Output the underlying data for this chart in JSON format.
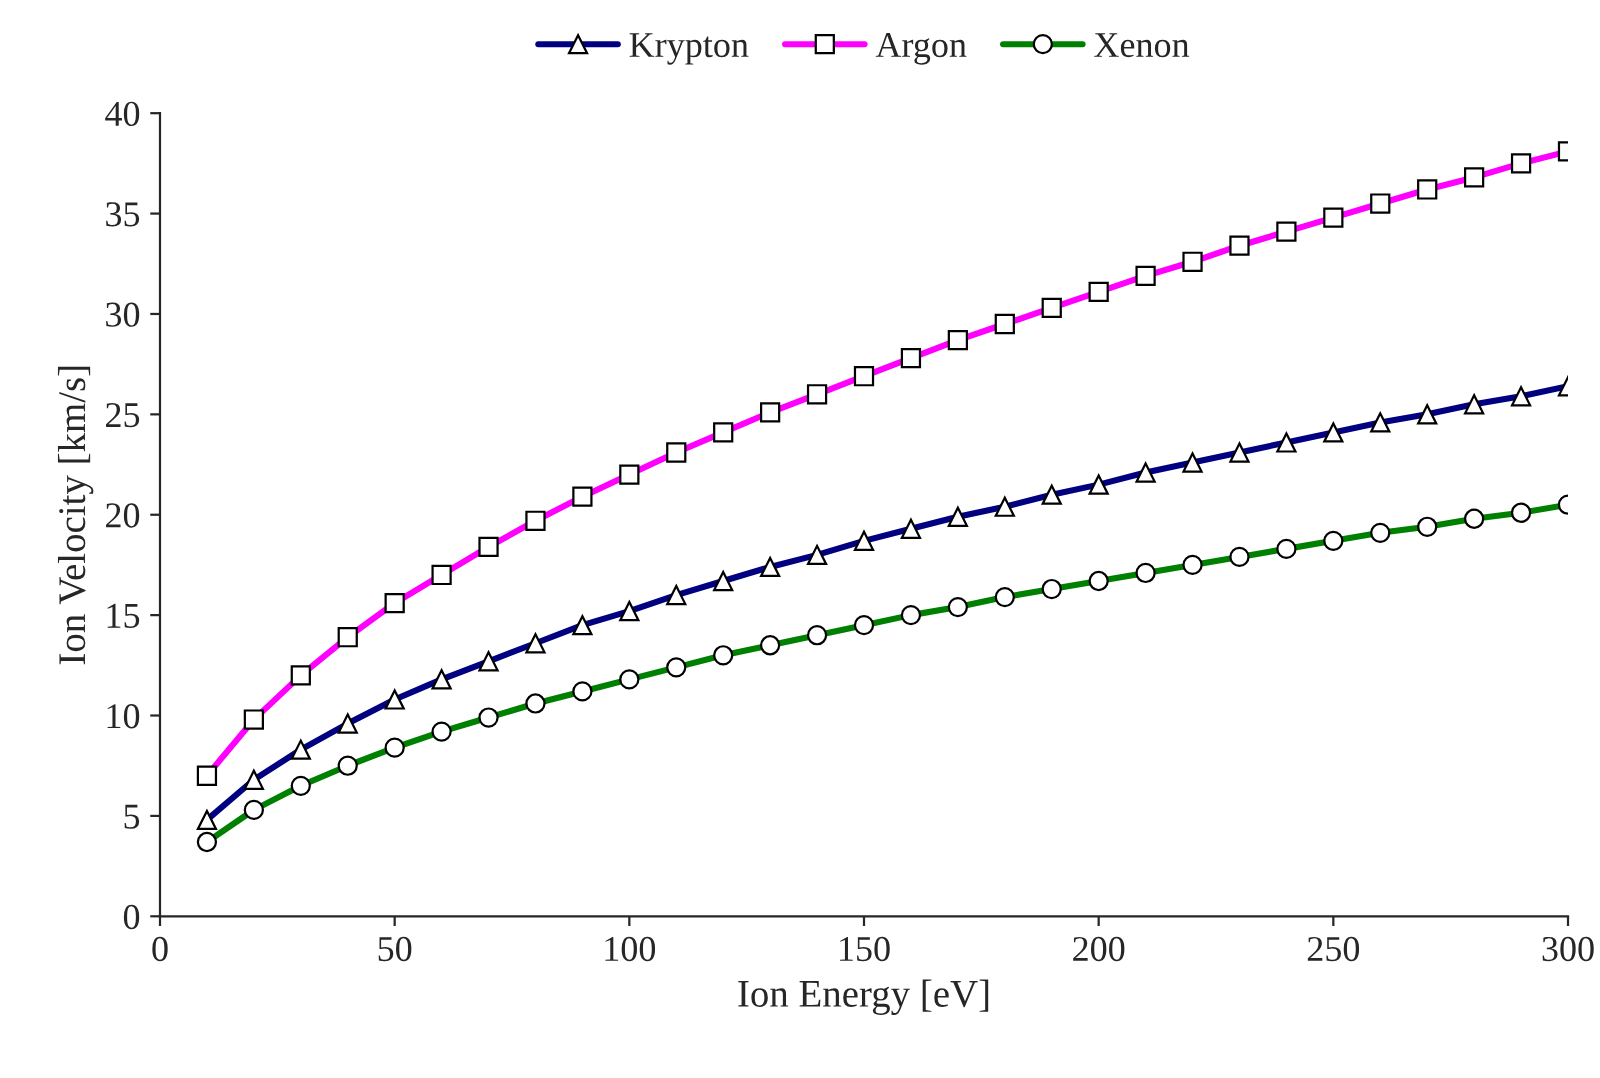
{
  "chart_data": {
    "type": "line",
    "xlabel": "Ion Energy [eV]",
    "ylabel": "Ion Velocity [km/s]",
    "x": [
      10,
      20,
      30,
      40,
      50,
      60,
      70,
      80,
      90,
      100,
      110,
      120,
      130,
      140,
      150,
      160,
      170,
      180,
      190,
      200,
      210,
      220,
      230,
      240,
      250,
      260,
      270,
      280,
      290,
      300
    ],
    "series": [
      {
        "name": "Krypton",
        "color": "#000080",
        "marker": "triangle",
        "values": [
          4.8,
          6.8,
          8.3,
          9.6,
          10.8,
          11.8,
          12.7,
          13.6,
          14.5,
          15.2,
          16.0,
          16.7,
          17.4,
          18.0,
          18.7,
          19.3,
          19.9,
          20.4,
          21.0,
          21.5,
          22.1,
          22.6,
          23.1,
          23.6,
          24.1,
          24.6,
          25.0,
          25.5,
          25.9,
          26.4
        ]
      },
      {
        "name": "Argon",
        "color": "#ff00ff",
        "marker": "square",
        "values": [
          7.0,
          9.8,
          12.0,
          13.9,
          15.6,
          17.0,
          18.4,
          19.7,
          20.9,
          22.0,
          23.1,
          24.1,
          25.1,
          26.0,
          26.9,
          27.8,
          28.7,
          29.5,
          30.3,
          31.1,
          31.9,
          32.6,
          33.4,
          34.1,
          34.8,
          35.5,
          36.2,
          36.8,
          37.5,
          38.1
        ]
      },
      {
        "name": "Xenon",
        "color": "#008000",
        "marker": "circle",
        "values": [
          3.7,
          5.3,
          6.5,
          7.5,
          8.4,
          9.2,
          9.9,
          10.6,
          11.2,
          11.8,
          12.4,
          13.0,
          13.5,
          14.0,
          14.5,
          15.0,
          15.4,
          15.9,
          16.3,
          16.7,
          17.1,
          17.5,
          17.9,
          18.3,
          18.7,
          19.1,
          19.4,
          19.8,
          20.1,
          20.5
        ]
      }
    ],
    "xlim": [
      0,
      300
    ],
    "xticks": [
      0,
      50,
      100,
      150,
      200,
      250,
      300
    ],
    "ylim": [
      0,
      40
    ],
    "yticks": [
      0,
      5,
      10,
      15,
      20,
      25,
      30,
      35,
      40
    ],
    "grid": false,
    "legend": "top",
    "line_style": "solid"
  }
}
